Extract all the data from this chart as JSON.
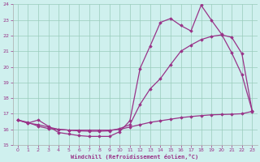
{
  "xlabel": "Windchill (Refroidissement éolien,°C)",
  "xlim": [
    -0.5,
    23.5
  ],
  "ylim": [
    15,
    24
  ],
  "yticks": [
    15,
    16,
    17,
    18,
    19,
    20,
    21,
    22,
    23,
    24
  ],
  "xticks": [
    0,
    1,
    2,
    3,
    4,
    5,
    6,
    7,
    8,
    9,
    10,
    11,
    12,
    13,
    14,
    15,
    16,
    17,
    18,
    19,
    20,
    21,
    22,
    23
  ],
  "background_color": "#cff0ee",
  "line_color": "#993388",
  "grid_color": "#99ccbb",
  "line1_x": [
    0,
    1,
    2,
    3,
    4,
    5,
    6,
    7,
    8,
    9,
    10,
    11,
    12,
    13,
    14,
    15,
    16,
    17,
    18,
    19,
    20,
    21,
    22,
    23
  ],
  "line1_y": [
    16.6,
    16.4,
    16.6,
    16.2,
    15.8,
    15.7,
    15.6,
    15.55,
    15.55,
    15.55,
    15.85,
    16.55,
    19.9,
    21.35,
    22.85,
    23.1,
    22.65,
    22.3,
    23.95,
    23.0,
    22.1,
    20.9,
    19.5,
    17.2
  ],
  "line2_x": [
    0,
    1,
    2,
    3,
    4,
    5,
    6,
    7,
    8,
    9,
    10,
    11,
    12,
    13,
    14,
    15,
    16,
    17,
    18,
    19,
    20,
    21,
    22,
    23
  ],
  "line2_y": [
    16.6,
    16.4,
    16.3,
    16.15,
    16.0,
    15.95,
    15.9,
    15.88,
    15.88,
    15.9,
    16.05,
    16.3,
    17.6,
    18.6,
    19.25,
    20.15,
    21.0,
    21.4,
    21.75,
    21.95,
    22.05,
    21.9,
    20.85,
    17.2
  ],
  "line3_x": [
    0,
    1,
    2,
    3,
    4,
    5,
    6,
    7,
    8,
    9,
    10,
    11,
    12,
    13,
    14,
    15,
    16,
    17,
    18,
    19,
    20,
    21,
    22,
    23
  ],
  "line3_y": [
    16.6,
    16.45,
    16.2,
    16.05,
    16.0,
    15.95,
    15.95,
    15.95,
    15.95,
    15.95,
    16.0,
    16.15,
    16.3,
    16.45,
    16.55,
    16.65,
    16.75,
    16.82,
    16.88,
    16.93,
    16.95,
    16.97,
    17.0,
    17.15
  ]
}
